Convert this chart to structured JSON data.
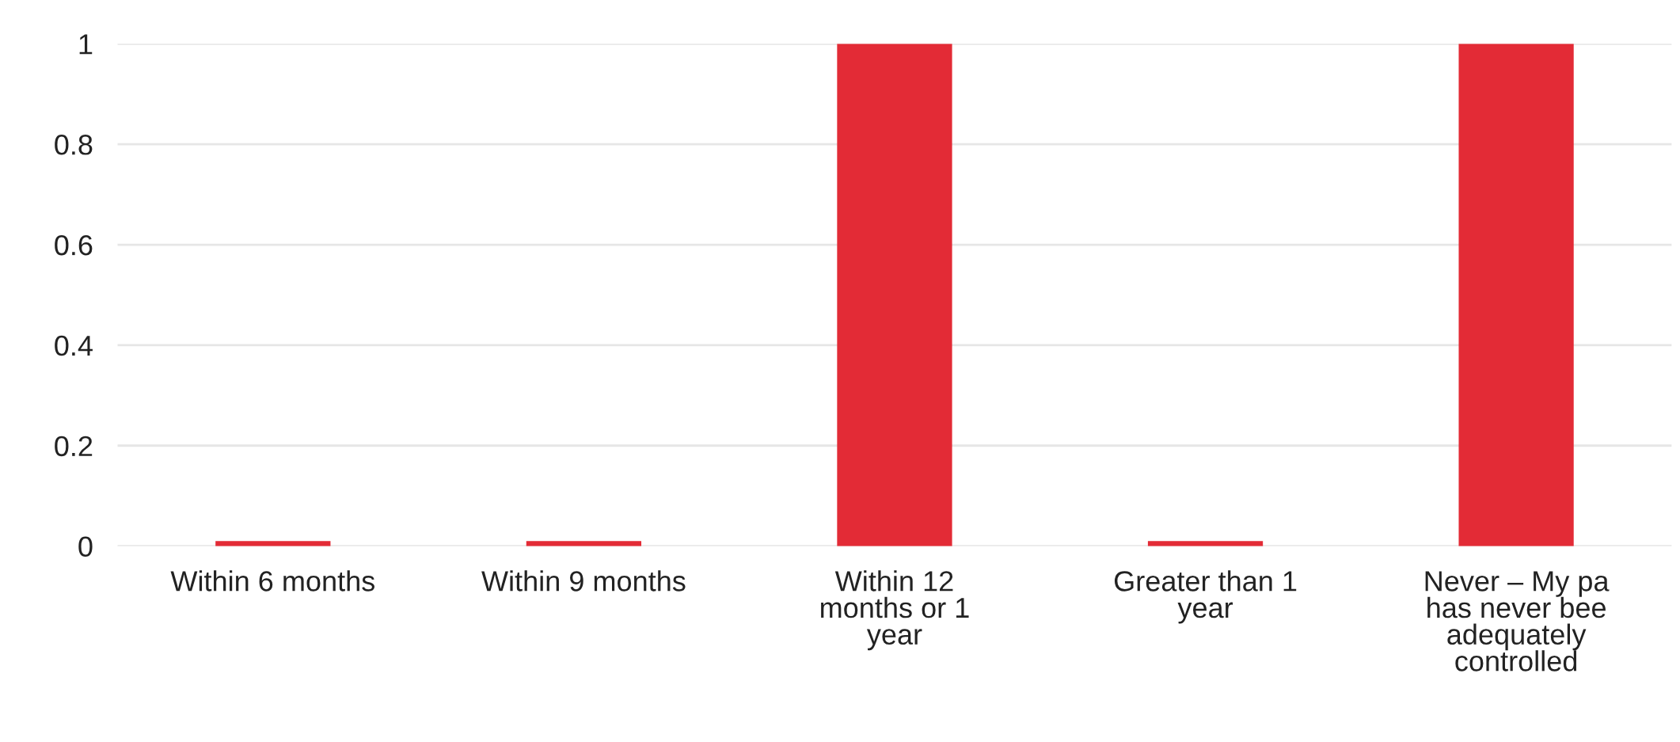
{
  "chart_data": {
    "type": "bar",
    "categories": [
      "Within 6 months",
      "Within 9 months",
      "Within 12\nmonths or 1\nyear",
      "Greater than 1\nyear",
      "Never – My pa\nhas never bee\nadequately\ncontrolled"
    ],
    "values": [
      0.01,
      0.01,
      1,
      0.01,
      1
    ],
    "color": "#e32b36",
    "ylim": [
      0,
      1
    ],
    "yticks": [
      0,
      0.2,
      0.4,
      0.6,
      0.8,
      1
    ],
    "grid": "y",
    "legend": false
  }
}
